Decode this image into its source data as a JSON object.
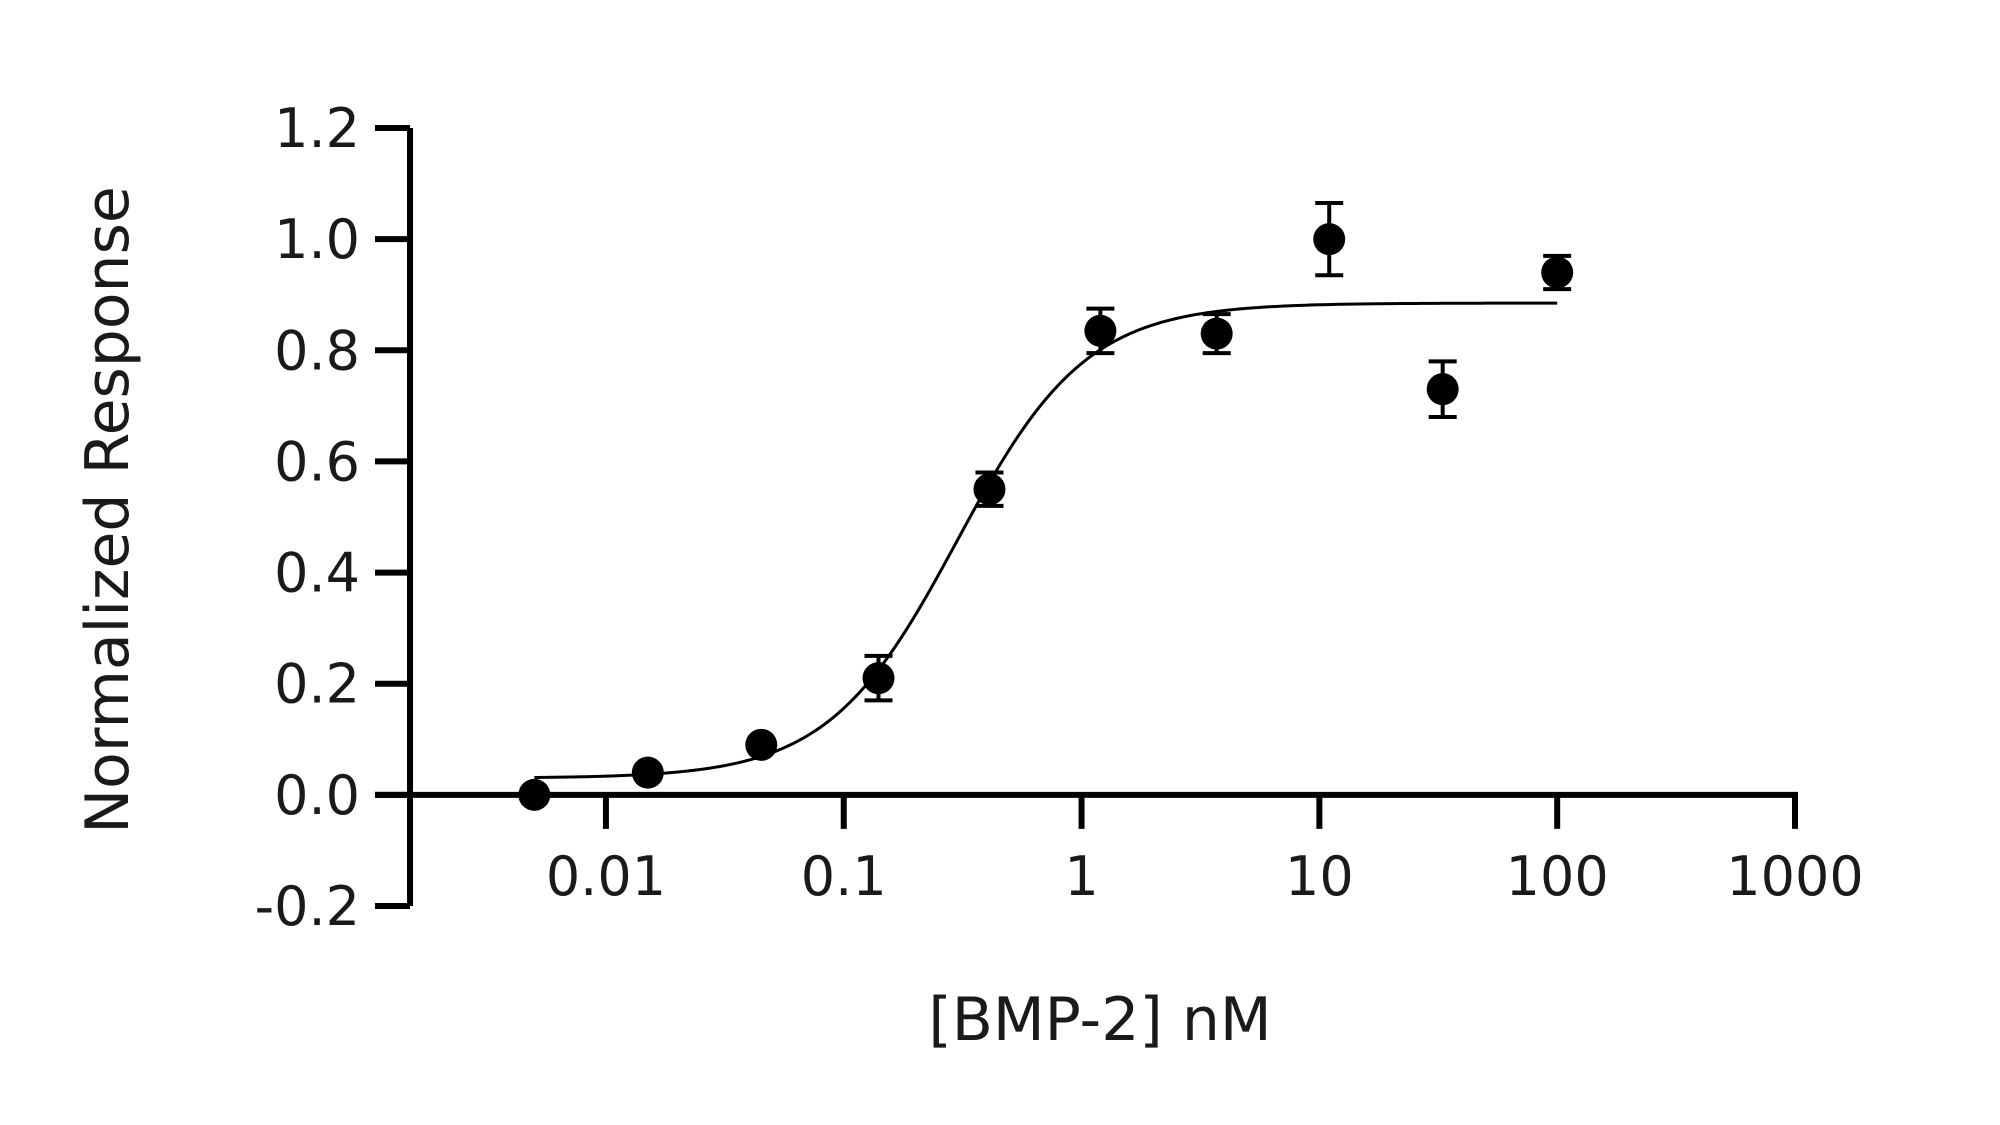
{
  "chart_data": {
    "type": "scatter",
    "title": "",
    "xlabel": "[BMP-2] nM",
    "ylabel": "Normalized Response",
    "x_scale": "log",
    "xlim": [
      0.0015,
      1000
    ],
    "ylim": [
      -0.2,
      1.2
    ],
    "grid": false,
    "legend": "none",
    "x_ticks": [
      {
        "value": 0.01,
        "label": "0.01"
      },
      {
        "value": 0.1,
        "label": "0.1"
      },
      {
        "value": 1,
        "label": "1"
      },
      {
        "value": 10,
        "label": "10"
      },
      {
        "value": 100,
        "label": "100"
      },
      {
        "value": 1000,
        "label": "1000"
      }
    ],
    "y_ticks": [
      {
        "value": 1.2,
        "label": "1.2"
      },
      {
        "value": 1.0,
        "label": "1.0"
      },
      {
        "value": 0.8,
        "label": "0.8"
      },
      {
        "value": 0.6,
        "label": "0.6"
      },
      {
        "value": 0.4,
        "label": "0.4"
      },
      {
        "value": 0.2,
        "label": "0.2"
      },
      {
        "value": 0.0,
        "label": "0.0"
      },
      {
        "value": -0.2,
        "label": "-0.2"
      }
    ],
    "series": [
      {
        "marker": "filled-circle",
        "color": "#000000",
        "points": [
          {
            "x": 0.005,
            "y": 0.0,
            "err": 0.0
          },
          {
            "x": 0.015,
            "y": 0.04,
            "err": 0.0
          },
          {
            "x": 0.045,
            "y": 0.09,
            "err": 0.0
          },
          {
            "x": 0.14,
            "y": 0.21,
            "err": 0.04
          },
          {
            "x": 0.41,
            "y": 0.55,
            "err": 0.03
          },
          {
            "x": 1.2,
            "y": 0.835,
            "err": 0.04
          },
          {
            "x": 3.7,
            "y": 0.83,
            "err": 0.035
          },
          {
            "x": 11,
            "y": 1.0,
            "err": 0.065
          },
          {
            "x": 33,
            "y": 0.73,
            "err": 0.05
          },
          {
            "x": 100,
            "y": 0.94,
            "err": 0.03
          }
        ]
      }
    ],
    "fit": {
      "type": "four-parameter-logistic",
      "color": "#000000",
      "bottom": 0.03,
      "top": 0.885,
      "ec50": 0.3,
      "hill": 1.6,
      "x_range": [
        0.005,
        100
      ]
    }
  }
}
